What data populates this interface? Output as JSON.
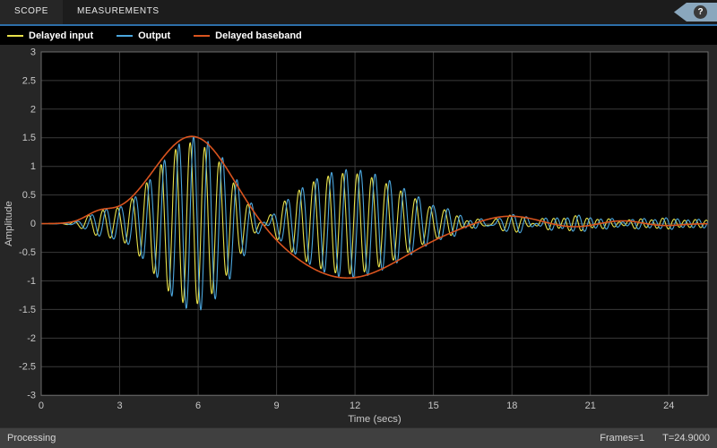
{
  "toolbar": {
    "tabs": [
      {
        "label": "SCOPE",
        "active": true
      },
      {
        "label": "MEASUREMENTS",
        "active": false
      }
    ],
    "help_icon": "?",
    "accent_color": "#2d6ea8",
    "ribbon_color": "#8aa7bd"
  },
  "statusbar": {
    "left": "Processing",
    "frames": "Frames=1",
    "time": "T=24.9000"
  },
  "chart_data": {
    "type": "line",
    "title": "",
    "xlabel": "Time (secs)",
    "ylabel": "Amplitude",
    "xlim": [
      0,
      25.5
    ],
    "ylim": [
      -3,
      3
    ],
    "xticks": [
      0,
      3,
      6,
      9,
      12,
      15,
      18,
      21,
      24
    ],
    "yticks": [
      -3,
      -2.5,
      -2,
      -1.5,
      -1,
      -0.5,
      0,
      0.5,
      1,
      1.5,
      2,
      2.5,
      3
    ],
    "grid": true,
    "legend_position": "top",
    "plot_bg": "#000000",
    "outer_bg": "#262626",
    "grid_color": "#3a3a3a",
    "border_color": "#6b6b6b",
    "axis_text_color": "#c7c7c7",
    "sample_step": 0.02,
    "carrier_freq_hz": 1.8,
    "envelope_gaussians": [
      [
        0.15,
        2.2,
        0.5
      ],
      [
        1.55,
        5.8,
        1.5
      ],
      [
        -0.95,
        11.7,
        2.2
      ],
      [
        0.15,
        17.8,
        1.15
      ],
      [
        -0.07,
        20.3,
        0.9
      ],
      [
        0.06,
        22.2,
        0.8
      ],
      [
        -0.04,
        23.7,
        0.7
      ]
    ],
    "ripple": {
      "freq": 2.4,
      "phase": 1.3,
      "gaussians": [
        [
          0.1,
          16.2,
          0.7
        ],
        [
          0.1,
          19.4,
          0.9
        ],
        [
          0.07,
          21.3,
          0.9
        ],
        [
          0.06,
          23.2,
          0.9
        ],
        [
          0.07,
          25.0,
          0.8
        ]
      ]
    },
    "series": [
      {
        "name": "Delayed input",
        "color": "#e8e14a",
        "kind": "modulated",
        "delay": 0,
        "scale": 0.93
      },
      {
        "name": "Output",
        "color": "#4ba6dd",
        "kind": "modulated",
        "delay": 0.13,
        "scale": 1.0
      },
      {
        "name": "Delayed baseband",
        "color": "#d9541f",
        "kind": "envelope",
        "delay": 0,
        "scale": 1.0
      }
    ]
  }
}
